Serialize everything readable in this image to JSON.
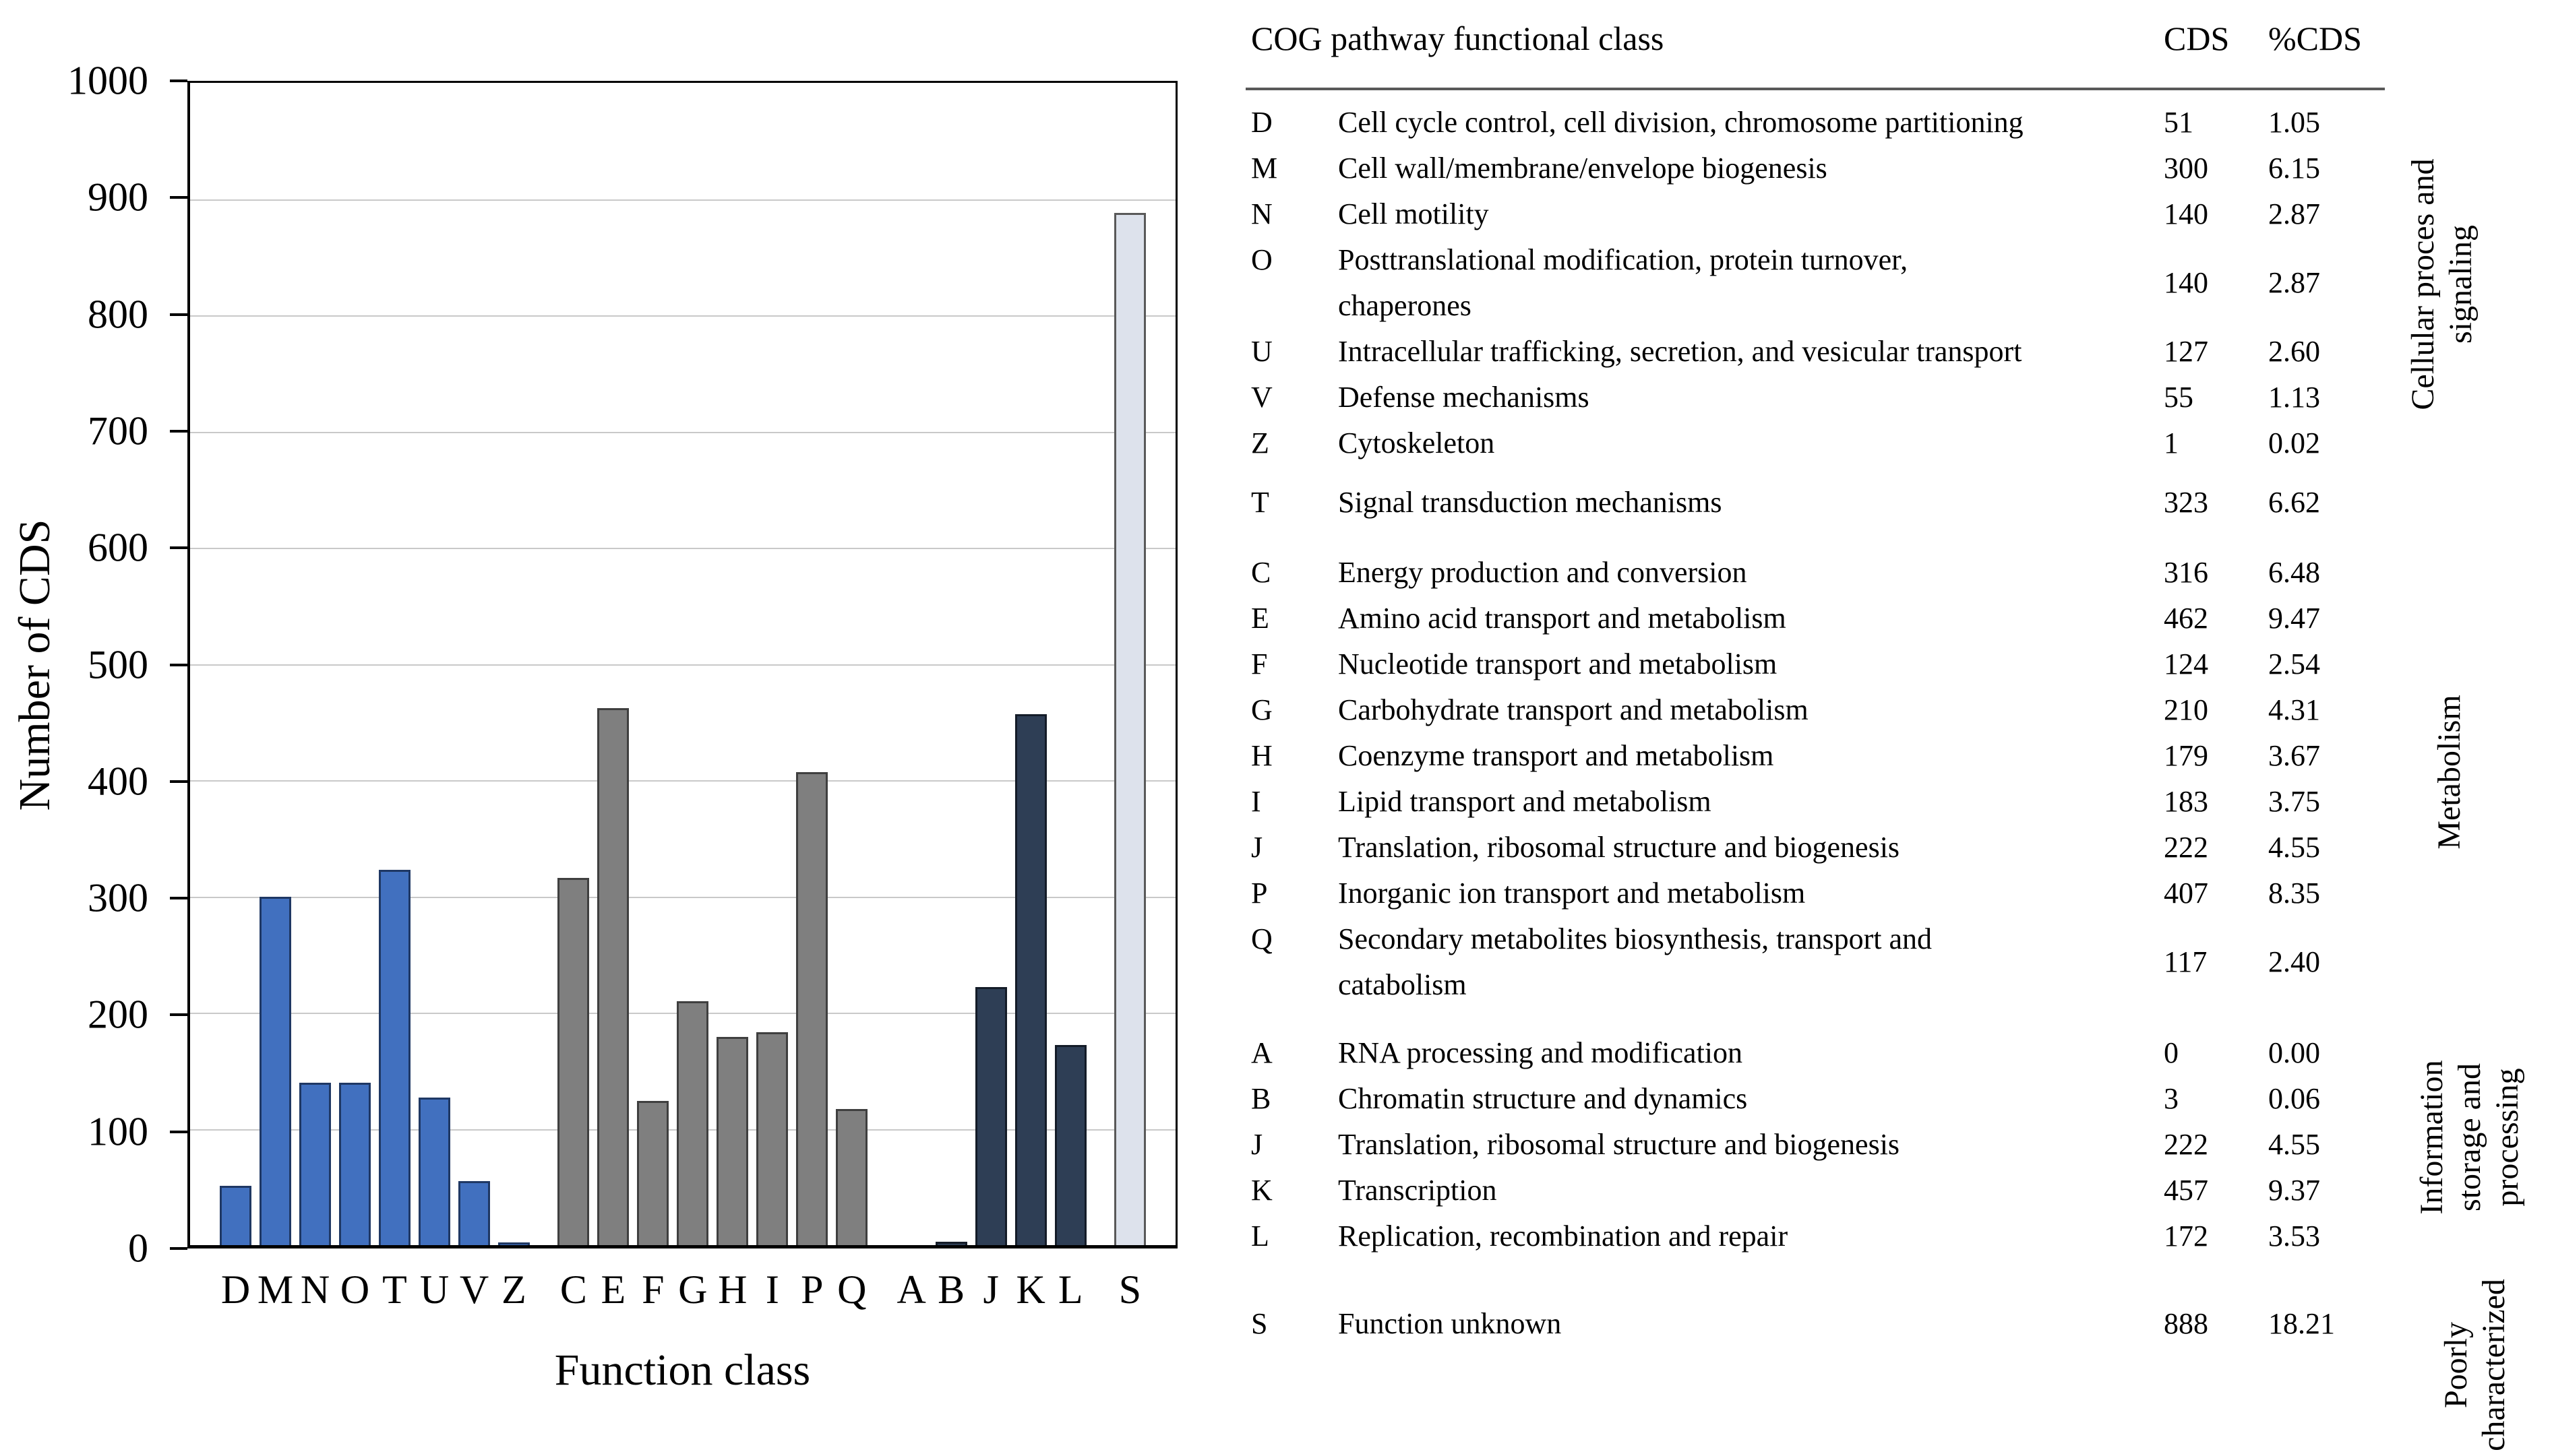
{
  "chart_data": {
    "type": "bar",
    "title": "",
    "xlabel": "Function class",
    "ylabel": "Number of CDS",
    "ylim": [
      0,
      1000
    ],
    "ytick_step": 100,
    "grid": true,
    "groups": [
      {
        "name": "cellular-processes-and-signaling",
        "color": "#4170bf",
        "border_color": "#1f3864",
        "categories": [
          "D",
          "M",
          "N",
          "O",
          "T",
          "U",
          "V",
          "Z"
        ],
        "values": [
          51,
          300,
          140,
          140,
          323,
          127,
          55,
          1
        ]
      },
      {
        "name": "metabolism",
        "color": "#7f7f7f",
        "border_color": "#3f3f3f",
        "categories": [
          "C",
          "E",
          "F",
          "G",
          "H",
          "I",
          "P",
          "Q"
        ],
        "values": [
          316,
          462,
          124,
          210,
          179,
          183,
          407,
          117
        ]
      },
      {
        "name": "information-storage-and-processing",
        "color": "#2e3e55",
        "border_color": "#141c28",
        "categories": [
          "A",
          "B",
          "J",
          "K",
          "L"
        ],
        "values": [
          0,
          3,
          222,
          457,
          172
        ]
      },
      {
        "name": "poorly-characterized",
        "color": "#dde2ec",
        "border_color": "#595959",
        "categories": [
          "S"
        ],
        "values": [
          888
        ]
      }
    ]
  },
  "table": {
    "col_headers": {
      "class": "COG pathway functional class",
      "cds": "CDS",
      "pct": "%CDS"
    },
    "sections": [
      {
        "rows": [
          {
            "code": "D",
            "description": "Cell cycle control, cell division, chromosome partitioning",
            "cds": "51",
            "pct": "1.05"
          },
          {
            "code": "M",
            "description": "Cell wall/membrane/envelope biogenesis",
            "cds": "300",
            "pct": "6.15"
          },
          {
            "code": "N",
            "description": "Cell motility",
            "cds": "140",
            "pct": "2.87"
          },
          {
            "code": "O",
            "description": "Posttranslational modification, protein turnover,\nchaperones",
            "cds": "140",
            "pct": "2.87"
          },
          {
            "code": "U",
            "description": "Intracellular trafficking, secretion, and vesicular transport",
            "cds": "127",
            "pct": "2.60"
          },
          {
            "code": "V",
            "description": "Defense mechanisms",
            "cds": "55",
            "pct": "1.13"
          },
          {
            "code": "Z",
            "description": "Cytoskeleton",
            "cds": "1",
            "pct": "0.02"
          }
        ]
      },
      {
        "rows": [
          {
            "code": "T",
            "description": "Signal transduction mechanisms",
            "cds": "323",
            "pct": "6.62"
          }
        ]
      },
      {
        "rows": [
          {
            "code": "C",
            "description": "Energy production and conversion",
            "cds": "316",
            "pct": "6.48"
          },
          {
            "code": "E",
            "description": "Amino acid transport and metabolism",
            "cds": "462",
            "pct": "9.47"
          },
          {
            "code": "F",
            "description": "Nucleotide transport and metabolism",
            "cds": "124",
            "pct": "2.54"
          },
          {
            "code": "G",
            "description": "Carbohydrate transport and metabolism",
            "cds": "210",
            "pct": "4.31"
          },
          {
            "code": "H",
            "description": "Coenzyme transport and metabolism",
            "cds": "179",
            "pct": "3.67"
          },
          {
            "code": "I",
            "description": "Lipid transport and metabolism",
            "cds": "183",
            "pct": "3.75"
          },
          {
            "code": "J",
            "description": "Translation, ribosomal structure and biogenesis",
            "cds": "222",
            "pct": "4.55"
          },
          {
            "code": "P",
            "description": "Inorganic ion transport and metabolism",
            "cds": "407",
            "pct": "8.35"
          },
          {
            "code": "Q",
            "description": "Secondary metabolites biosynthesis, transport and\ncatabolism",
            "cds": "117",
            "pct": "2.40"
          }
        ]
      },
      {
        "rows": [
          {
            "code": "A",
            "description": "RNA processing and modification",
            "cds": "0",
            "pct": "0.00"
          },
          {
            "code": "B",
            "description": "Chromatin structure and dynamics",
            "cds": "3",
            "pct": "0.06"
          },
          {
            "code": "J",
            "description": "Translation, ribosomal structure and biogenesis",
            "cds": "222",
            "pct": "4.55"
          },
          {
            "code": "K",
            "description": "Transcription",
            "cds": "457",
            "pct": "9.37"
          },
          {
            "code": "L",
            "description": "Replication, recombination and repair",
            "cds": "172",
            "pct": "3.53"
          }
        ]
      },
      {
        "rows": [
          {
            "code": "S",
            "description": "Function unknown",
            "cds": "888",
            "pct": "18.21"
          }
        ]
      }
    ],
    "side_labels": [
      {
        "lines": [
          "Cellular proces and",
          "signaling"
        ]
      },
      {
        "lines": [
          "Metabolism"
        ]
      },
      {
        "lines": [
          "Information",
          "storage and",
          "processing"
        ]
      },
      {
        "lines": [
          "Poorly",
          "characterized"
        ]
      }
    ]
  }
}
